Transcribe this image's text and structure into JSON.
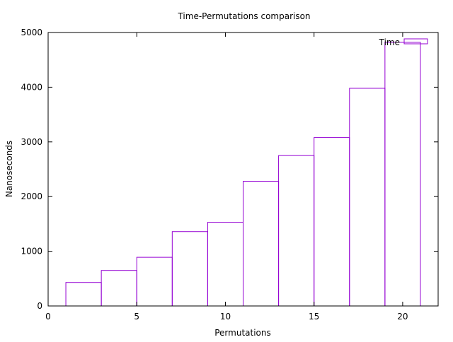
{
  "chart_data": {
    "type": "bar",
    "title": "Time-Permutations comparison",
    "xlabel": "Permutations",
    "ylabel": "Nanoseconds",
    "xlim": [
      0,
      22
    ],
    "ylim": [
      0,
      5000
    ],
    "xticks": [
      0,
      5,
      10,
      15,
      20
    ],
    "yticks": [
      0,
      1000,
      2000,
      3000,
      4000,
      5000
    ],
    "bar_width": 2,
    "legend_position": "top-right",
    "grid": false,
    "series": [
      {
        "name": "Time",
        "color": "#9400d3",
        "x": [
          2,
          4,
          6,
          8,
          10,
          12,
          14,
          16,
          18,
          20
        ],
        "values": [
          430,
          650,
          890,
          1360,
          1530,
          2280,
          2750,
          3080,
          3980,
          4820
        ]
      }
    ]
  }
}
